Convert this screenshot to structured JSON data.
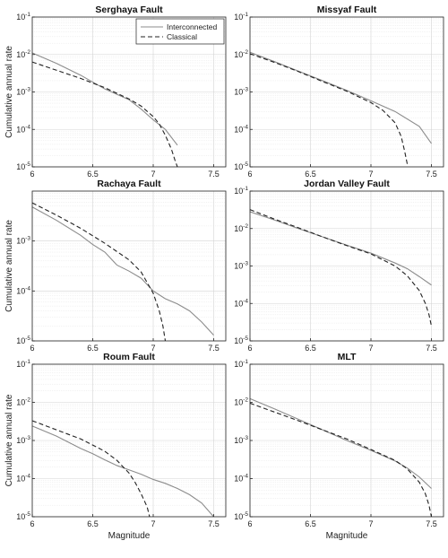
{
  "figure": {
    "ylabel": "Cumulative annual rate",
    "xlabel": "Magnitude"
  },
  "legend": {
    "items": [
      {
        "label": "Interconnected",
        "style": "solid",
        "color": "#8c8c8c"
      },
      {
        "label": "Classical",
        "style": "dashed",
        "color": "#222222"
      }
    ],
    "placement": "top-right of first panel"
  },
  "chart_data": [
    {
      "type": "line",
      "title": "Serghaya Fault",
      "xlim": [
        6,
        7.6
      ],
      "ylim": [
        1e-05,
        0.1
      ],
      "yscale": "log",
      "grid": true,
      "xticks": [
        "6",
        "6.5",
        "7",
        "7.5"
      ],
      "yticks": [
        "10^-5",
        "10^-4",
        "10^-3",
        "10^-2",
        "10^-1"
      ],
      "series": [
        {
          "name": "Interconnected",
          "x": [
            6.0,
            6.2,
            6.4,
            6.6,
            6.8,
            6.9,
            7.0,
            7.1,
            7.2
          ],
          "y": [
            0.011,
            0.0058,
            0.0028,
            0.0012,
            0.00062,
            0.00035,
            0.00018,
            0.0001,
            3.8e-05
          ]
        },
        {
          "name": "Classical",
          "x": [
            6.0,
            6.2,
            6.4,
            6.6,
            6.8,
            6.9,
            7.0,
            7.05,
            7.1,
            7.15,
            7.18,
            7.2
          ],
          "y": [
            0.0063,
            0.0038,
            0.0023,
            0.0013,
            0.00065,
            0.00042,
            0.00022,
            0.00014,
            7e-05,
            3e-05,
            1.5e-05,
            1e-05
          ]
        }
      ]
    },
    {
      "type": "line",
      "title": "Missyaf Fault",
      "xlim": [
        6,
        7.6
      ],
      "ylim": [
        1e-05,
        0.1
      ],
      "yscale": "log",
      "grid": true,
      "xticks": [
        "6",
        "6.5",
        "7",
        "7.5"
      ],
      "yticks": [
        "10^-5",
        "10^-4",
        "10^-3",
        "10^-2",
        "10^-1"
      ],
      "series": [
        {
          "name": "Interconnected",
          "x": [
            6.0,
            6.2,
            6.4,
            6.6,
            6.8,
            7.0,
            7.2,
            7.4,
            7.5
          ],
          "y": [
            0.0115,
            0.0065,
            0.0036,
            0.002,
            0.0011,
            0.00058,
            0.0003,
            0.00012,
            4.2e-05
          ]
        },
        {
          "name": "Classical",
          "x": [
            6.0,
            6.2,
            6.4,
            6.6,
            6.8,
            7.0,
            7.1,
            7.2,
            7.25,
            7.28,
            7.3
          ],
          "y": [
            0.0105,
            0.0062,
            0.0035,
            0.0019,
            0.00105,
            0.00052,
            0.00032,
            0.00015,
            6.5e-05,
            2.5e-05,
            1.2e-05
          ]
        }
      ]
    },
    {
      "type": "line",
      "title": "Rachaya Fault",
      "xlim": [
        6,
        7.6
      ],
      "ylim": [
        1e-05,
        0.01
      ],
      "yscale": "log",
      "grid": true,
      "xticks": [
        "6",
        "6.5",
        "7",
        "7.5"
      ],
      "yticks": [
        "10^-5",
        "10^-4",
        "10^-3"
      ],
      "series": [
        {
          "name": "Interconnected",
          "x": [
            6.0,
            6.2,
            6.4,
            6.5,
            6.6,
            6.7,
            6.8,
            6.9,
            7.0,
            7.1,
            7.2,
            7.3,
            7.4,
            7.5
          ],
          "y": [
            0.0048,
            0.0026,
            0.0013,
            0.00085,
            0.0006,
            0.00033,
            0.00025,
            0.00018,
            0.0001,
            7e-05,
            5.5e-05,
            4e-05,
            2.4e-05,
            1.3e-05
          ]
        },
        {
          "name": "Classical",
          "x": [
            6.0,
            6.2,
            6.4,
            6.6,
            6.8,
            6.9,
            7.0,
            7.05,
            7.08,
            7.1
          ],
          "y": [
            0.0058,
            0.0033,
            0.0018,
            0.0009,
            0.00042,
            0.00024,
            9e-05,
            4e-05,
            2e-05,
            1e-05
          ]
        }
      ]
    },
    {
      "type": "line",
      "title": "Jordan Valley Fault",
      "xlim": [
        6,
        7.6
      ],
      "ylim": [
        1e-05,
        0.1
      ],
      "yscale": "log",
      "grid": true,
      "xticks": [
        "6",
        "6.5",
        "7",
        "7.5"
      ],
      "yticks": [
        "10^-5",
        "10^-4",
        "10^-3",
        "10^-2",
        "10^-1"
      ],
      "series": [
        {
          "name": "Interconnected",
          "x": [
            6.0,
            6.2,
            6.4,
            6.6,
            6.8,
            7.0,
            7.2,
            7.3,
            7.4,
            7.5
          ],
          "y": [
            0.028,
            0.017,
            0.01,
            0.006,
            0.0036,
            0.0022,
            0.0012,
            0.00085,
            0.00052,
            0.00031
          ]
        },
        {
          "name": "Classical",
          "x": [
            6.0,
            6.2,
            6.4,
            6.6,
            6.8,
            7.0,
            7.2,
            7.3,
            7.4,
            7.45,
            7.48,
            7.5
          ],
          "y": [
            0.032,
            0.018,
            0.0105,
            0.006,
            0.0035,
            0.0021,
            0.001,
            0.00055,
            0.00022,
            0.0001,
            5e-05,
            2.5e-05
          ]
        }
      ]
    },
    {
      "type": "line",
      "title": "Roum Fault",
      "xlim": [
        6,
        7.6
      ],
      "ylim": [
        1e-05,
        0.1
      ],
      "yscale": "log",
      "grid": true,
      "xticks": [
        "6",
        "6.5",
        "7",
        "7.5"
      ],
      "yticks": [
        "10^-5",
        "10^-4",
        "10^-3",
        "10^-2",
        "10^-1"
      ],
      "series": [
        {
          "name": "Interconnected",
          "x": [
            6.0,
            6.2,
            6.4,
            6.5,
            6.6,
            6.7,
            6.8,
            6.9,
            7.0,
            7.1,
            7.2,
            7.3,
            7.4,
            7.5
          ],
          "y": [
            0.0024,
            0.0013,
            0.00062,
            0.00045,
            0.00031,
            0.00022,
            0.00017,
            0.00013,
            9.5e-05,
            7.5e-05,
            5.5e-05,
            3.8e-05,
            2.3e-05,
            1e-05
          ]
        },
        {
          "name": "Classical",
          "x": [
            6.0,
            6.2,
            6.4,
            6.6,
            6.7,
            6.8,
            6.85,
            6.9,
            6.95,
            6.97
          ],
          "y": [
            0.0033,
            0.0019,
            0.0011,
            0.00052,
            0.0003,
            0.00014,
            8e-05,
            4e-05,
            1.8e-05,
            1e-05
          ]
        }
      ]
    },
    {
      "type": "line",
      "title": "MLT",
      "xlim": [
        6,
        7.6
      ],
      "ylim": [
        1e-05,
        0.1
      ],
      "yscale": "log",
      "grid": true,
      "xticks": [
        "6",
        "6.5",
        "7",
        "7.5"
      ],
      "yticks": [
        "10^-5",
        "10^-4",
        "10^-3",
        "10^-2",
        "10^-1"
      ],
      "series": [
        {
          "name": "Interconnected",
          "x": [
            6.0,
            6.2,
            6.4,
            6.6,
            6.8,
            7.0,
            7.2,
            7.3,
            7.4,
            7.5
          ],
          "y": [
            0.0125,
            0.0068,
            0.0036,
            0.0019,
            0.001,
            0.00055,
            0.00029,
            0.00019,
            0.00011,
            5.5e-05
          ]
        },
        {
          "name": "Classical",
          "x": [
            6.0,
            6.2,
            6.4,
            6.6,
            6.8,
            7.0,
            7.2,
            7.3,
            7.4,
            7.45,
            7.48,
            7.5
          ],
          "y": [
            0.0095,
            0.0056,
            0.0033,
            0.0019,
            0.0011,
            0.00058,
            0.0003,
            0.00018,
            8e-05,
            4e-05,
            2e-05,
            1e-05
          ]
        }
      ]
    }
  ]
}
